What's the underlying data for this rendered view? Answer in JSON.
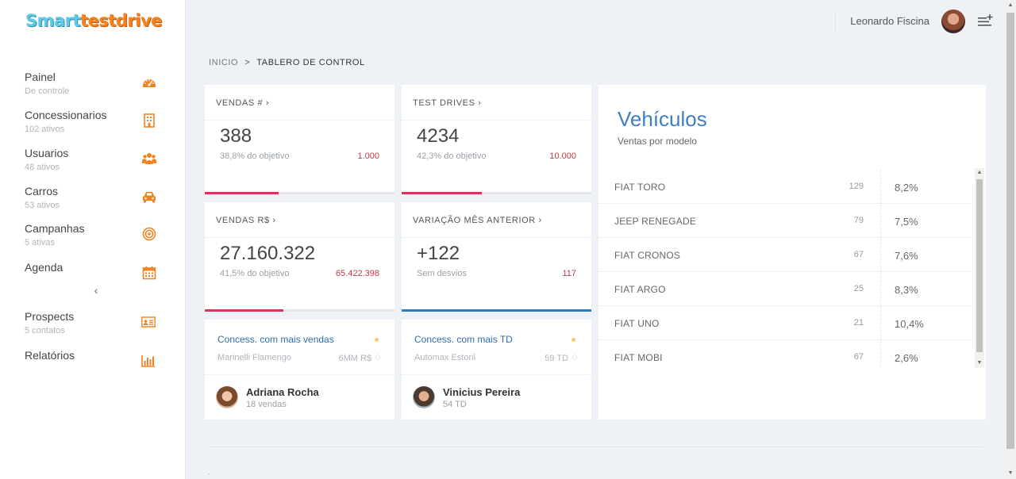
{
  "logo": {
    "part1": "Smart",
    "part2": "testdrive"
  },
  "sidebar": {
    "items": [
      {
        "label": "Painel",
        "sub": "De controle"
      },
      {
        "label": "Concessionarios",
        "sub": "102 ativos"
      },
      {
        "label": "Usuarios",
        "sub": "48 ativos"
      },
      {
        "label": "Carros",
        "sub": "53 ativos"
      },
      {
        "label": "Campanhas",
        "sub": "5 ativas"
      },
      {
        "label": "Agenda",
        "sub": ""
      },
      {
        "label": "Prospects",
        "sub": "5 contatos"
      },
      {
        "label": "Relatórios",
        "sub": ""
      }
    ],
    "collapse_glyph": "‹",
    "icon_color": "#f58220"
  },
  "header": {
    "user_name": "Leonardo Fiscina"
  },
  "breadcrumb": {
    "home": "INICIO",
    "sep": ">",
    "current": "TABLERO DE CONTROL"
  },
  "cards": {
    "vendas_qtd": {
      "title": "VENDAS #",
      "value": "388",
      "sub": "38,8% do objetivo",
      "goal": "1.000",
      "progress": 0.388
    },
    "test_drives": {
      "title": "TEST DRIVES",
      "value": "4234",
      "sub": "42,3% do objetivo",
      "goal": "10.000",
      "progress": 0.423
    },
    "vendas_rs": {
      "title": "VENDAS R$",
      "value": "27.160.322",
      "sub": "41,5% do objetivo",
      "goal": "65.422.398",
      "progress": 0.415
    },
    "variacao": {
      "title": "VARIAÇÃO MÊS ANTERIOR",
      "value": "+122",
      "sub": "Sem desvios",
      "goal": "117",
      "progress": 1.0
    }
  },
  "top_dealers": {
    "sales": {
      "title": "Concess. com mais vendas",
      "name": "Marinelli Flamengo",
      "metric": "6MM R$"
    },
    "td": {
      "title": "Concess. com mais TD",
      "name": "Automax Estoril",
      "metric": "59 TD"
    }
  },
  "top_people": {
    "sales": {
      "name": "Adriana Rocha",
      "sub": "18 vendas"
    },
    "td": {
      "name": "Vinicius Pereira",
      "sub": "54 TD"
    }
  },
  "vehicles": {
    "title": "Vehículos",
    "subtitle": "Ventas por modelo",
    "rows": [
      {
        "model": "FIAT TORO",
        "count": "129",
        "pct": "8,2%"
      },
      {
        "model": "JEEP RENEGADE",
        "count": "79",
        "pct": "7,5%"
      },
      {
        "model": "FIAT CRONOS",
        "count": "67",
        "pct": "7,6%"
      },
      {
        "model": "FIAT ARGO",
        "count": "25",
        "pct": "8,3%"
      },
      {
        "model": "FIAT UNO",
        "count": "21",
        "pct": "10,4%"
      },
      {
        "model": "FIAT MOBI",
        "count": "67",
        "pct": "2,6%"
      }
    ]
  },
  "colors": {
    "accent": "#3d7fc4",
    "progress_red": "#d1385a",
    "progress_blue": "#2f7bc4",
    "goal_red": "#c0394a"
  }
}
